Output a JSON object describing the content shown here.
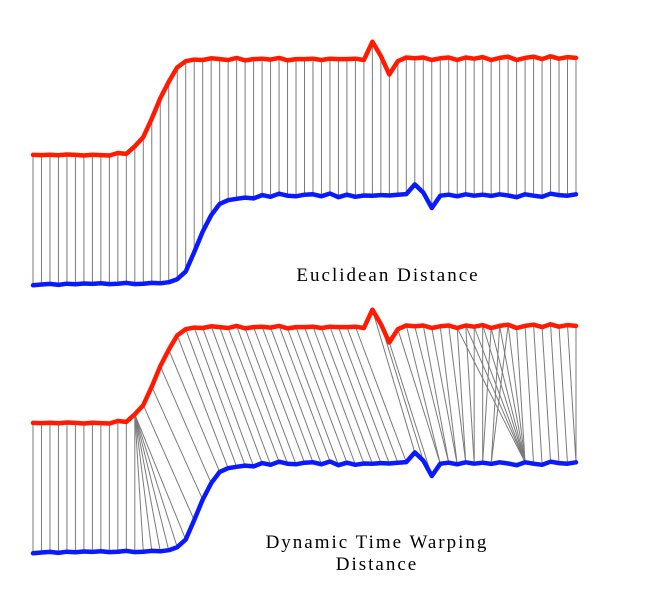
{
  "panels": [
    {
      "id": "euclidean",
      "caption_lines": [
        "Euclidean Distance"
      ],
      "alignment": "euclidean"
    },
    {
      "id": "dtw",
      "caption_lines": [
        "Dynamic Time Warping",
        "Distance"
      ],
      "alignment": "dtw"
    }
  ],
  "colors": {
    "series_a": "#ff1a00",
    "series_b": "#0a1aff",
    "links": "#7a7a7a"
  },
  "series": {
    "a": [
      1.03,
      1.02,
      1.04,
      1.01,
      1.05,
      1.03,
      1.0,
      1.04,
      1.02,
      1.0,
      1.12,
      1.08,
      1.45,
      1.9,
      2.8,
      3.8,
      4.6,
      5.3,
      5.6,
      5.68,
      5.66,
      5.74,
      5.7,
      5.66,
      5.76,
      5.64,
      5.7,
      5.72,
      5.68,
      5.76,
      5.64,
      5.7,
      5.7,
      5.72,
      5.66,
      5.72,
      5.7,
      5.7,
      5.72,
      5.66,
      6.55,
      5.85,
      4.95,
      5.6,
      5.78,
      5.74,
      5.78,
      5.66,
      5.74,
      5.78,
      5.66,
      5.78,
      5.72,
      5.8,
      5.66,
      5.76,
      5.82,
      5.66,
      5.76,
      5.82,
      5.7,
      5.84,
      5.72,
      5.8,
      5.76
    ],
    "b": [
      0.18,
      0.22,
      0.25,
      0.2,
      0.26,
      0.23,
      0.27,
      0.25,
      0.28,
      0.24,
      0.26,
      0.3,
      0.24,
      0.26,
      0.3,
      0.28,
      0.33,
      0.48,
      0.85,
      1.8,
      2.8,
      3.6,
      4.15,
      4.33,
      4.4,
      4.46,
      4.42,
      4.58,
      4.5,
      4.65,
      4.55,
      4.52,
      4.6,
      4.62,
      4.52,
      4.66,
      4.48,
      4.6,
      4.5,
      4.56,
      4.55,
      4.58,
      4.56,
      4.6,
      4.63,
      5.1,
      4.7,
      3.95,
      4.55,
      4.6,
      4.52,
      4.62,
      4.55,
      4.6,
      4.54,
      4.62,
      4.56,
      4.48,
      4.62,
      4.55,
      4.5,
      4.65,
      4.58,
      4.55,
      4.62
    ]
  }
}
